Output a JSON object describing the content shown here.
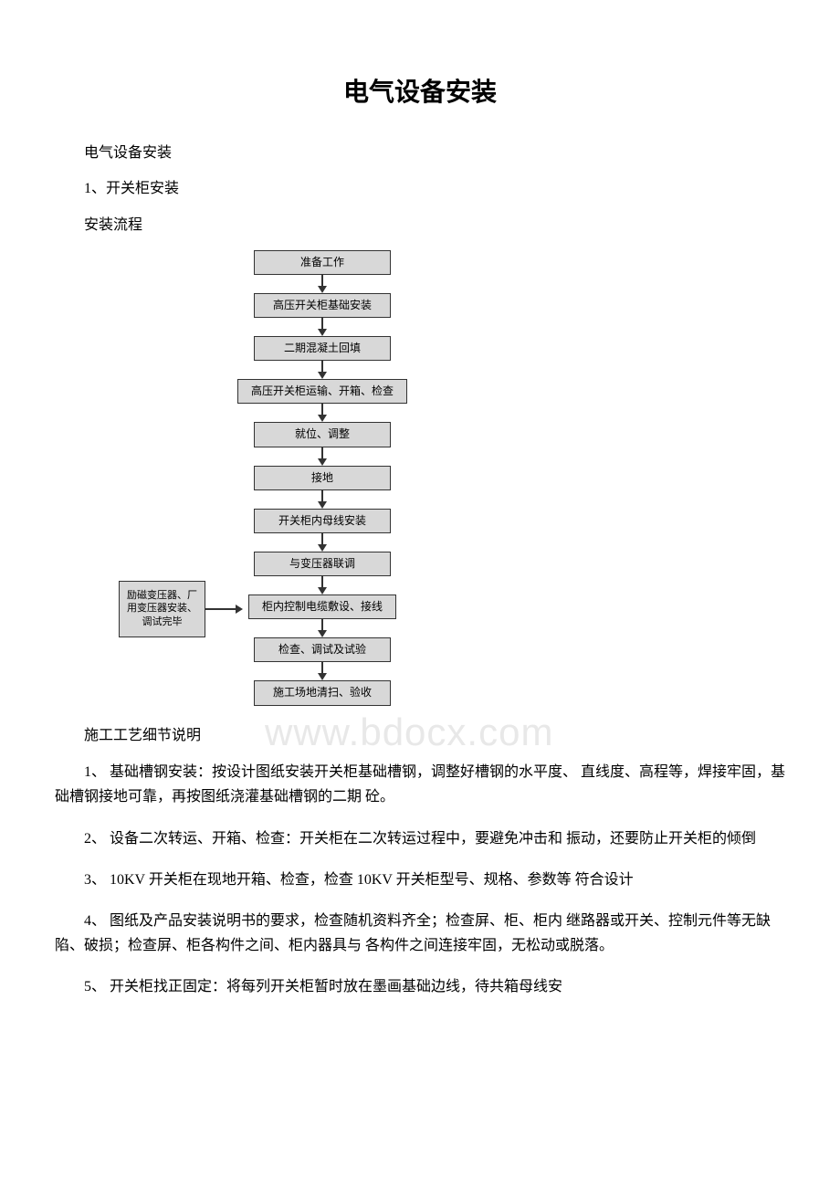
{
  "title": "电气设备安装",
  "intro": {
    "line1": "电气设备安装",
    "line2": "1、开关柜安装",
    "line3": "安装流程"
  },
  "flowchart": {
    "side_box": "励磁变压器、厂用变压器安装、调试完毕",
    "steps": [
      "准备工作",
      "高压开关柜基础安装",
      "二期混凝土回填",
      "高压开关柜运输、开箱、检查",
      "就位、调整",
      "接地",
      "开关柜内母线安装",
      "与变压器联调",
      "柜内控制电缆敷设、接线",
      "检查、调试及试验",
      "施工场地清扫、验收"
    ],
    "box_bg": "#d8d8d8",
    "box_border": "#333333",
    "arrow_color": "#333333"
  },
  "watermark": "www.bdocx.com",
  "subtitle": "施工工艺细节说明",
  "paragraphs": {
    "p1": "1、 基础槽钢安装：按设计图纸安装开关柜基础槽钢，调整好槽钢的水平度、 直线度、高程等，焊接牢固，基础槽钢接地可靠，再按图纸浇灌基础槽钢的二期 砼。",
    "p2": "2、 设备二次转运、开箱、检查：开关柜在二次转运过程中，要避免冲击和 振动，还要防止开关柜的倾倒",
    "p3": "3、 10KV 开关柜在现地开箱、检查，检查 10KV 开关柜型号、规格、参数等 符合设计",
    "p4": "4、 图纸及产品安装说明书的要求，检查随机资料齐全；检查屏、柜、柜内 继路器或开关、控制元件等无缺陷、破损；检查屏、柜各构件之间、柜内器具与 各构件之间连接牢固，无松动或脱落。",
    "p5": "5、 开关柜找正固定：将每列开关柜暂时放在墨画基础边线，待共箱母线安"
  }
}
